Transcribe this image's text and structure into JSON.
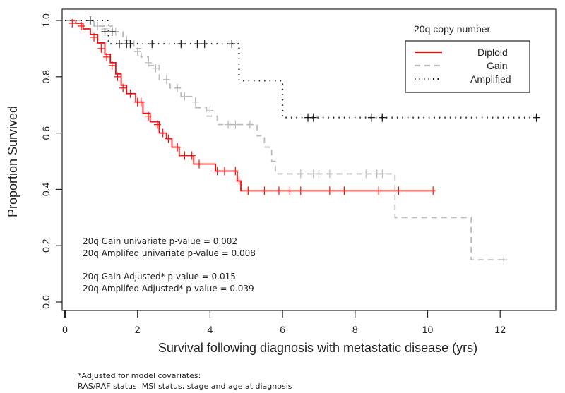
{
  "chart_data": {
    "type": "line",
    "subtype": "kaplan-meier",
    "title": "",
    "xlabel": "Survival following diagnosis with metastatic disease (yrs)",
    "ylabel": "Proportion Survived",
    "xlim": [
      0,
      13.3
    ],
    "ylim": [
      -0.03,
      1.03
    ],
    "xticks": [
      "0",
      "2",
      "4",
      "6",
      "8",
      "10",
      "12"
    ],
    "yticks": [
      "0.0",
      "0.2",
      "0.4",
      "0.6",
      "0.8",
      "1.0"
    ],
    "legend": {
      "title": "20q copy number",
      "placement": "top-right"
    },
    "series": [
      {
        "name": "Diploid",
        "color": "#ee1111",
        "dash": "solid",
        "steps": [
          [
            0,
            1.0
          ],
          [
            0.3,
            0.99
          ],
          [
            0.5,
            0.97
          ],
          [
            0.7,
            0.95
          ],
          [
            0.9,
            0.92
          ],
          [
            1.1,
            0.88
          ],
          [
            1.25,
            0.85
          ],
          [
            1.4,
            0.81
          ],
          [
            1.55,
            0.77
          ],
          [
            1.7,
            0.74
          ],
          [
            1.95,
            0.71
          ],
          [
            2.15,
            0.67
          ],
          [
            2.35,
            0.64
          ],
          [
            2.6,
            0.6
          ],
          [
            2.8,
            0.58
          ],
          [
            2.95,
            0.55
          ],
          [
            3.15,
            0.52
          ],
          [
            3.55,
            0.49
          ],
          [
            4.15,
            0.465
          ],
          [
            4.75,
            0.43
          ],
          [
            4.85,
            0.395
          ]
        ],
        "end": 10.2,
        "censored": [
          [
            0.2,
            0.99
          ],
          [
            0.45,
            0.98
          ],
          [
            0.8,
            0.94
          ],
          [
            1.0,
            0.9
          ],
          [
            1.15,
            0.87
          ],
          [
            1.3,
            0.84
          ],
          [
            1.45,
            0.8
          ],
          [
            1.6,
            0.76
          ],
          [
            1.8,
            0.74
          ],
          [
            2.0,
            0.71
          ],
          [
            2.1,
            0.71
          ],
          [
            2.3,
            0.66
          ],
          [
            2.55,
            0.63
          ],
          [
            2.7,
            0.6
          ],
          [
            2.85,
            0.58
          ],
          [
            3.1,
            0.55
          ],
          [
            3.3,
            0.52
          ],
          [
            3.5,
            0.52
          ],
          [
            3.7,
            0.49
          ],
          [
            4.2,
            0.465
          ],
          [
            4.4,
            0.465
          ],
          [
            4.7,
            0.465
          ],
          [
            4.8,
            0.43
          ],
          [
            5.05,
            0.395
          ],
          [
            5.5,
            0.395
          ],
          [
            5.9,
            0.395
          ],
          [
            6.2,
            0.395
          ],
          [
            6.5,
            0.395
          ],
          [
            7.3,
            0.395
          ],
          [
            7.7,
            0.395
          ],
          [
            8.65,
            0.395
          ],
          [
            9.2,
            0.395
          ],
          [
            10.15,
            0.395
          ]
        ]
      },
      {
        "name": "Gain",
        "color": "#bbbbbb",
        "dash": "dashed",
        "steps": [
          [
            0,
            1.0
          ],
          [
            0.8,
            0.98
          ],
          [
            1.3,
            0.96
          ],
          [
            1.6,
            0.93
          ],
          [
            1.9,
            0.9
          ],
          [
            2.1,
            0.87
          ],
          [
            2.3,
            0.84
          ],
          [
            2.6,
            0.79
          ],
          [
            2.9,
            0.76
          ],
          [
            3.2,
            0.73
          ],
          [
            3.6,
            0.69
          ],
          [
            3.9,
            0.66
          ],
          [
            4.2,
            0.63
          ],
          [
            5.3,
            0.59
          ],
          [
            5.5,
            0.55
          ],
          [
            5.7,
            0.5
          ],
          [
            5.8,
            0.455
          ],
          [
            9.1,
            0.3
          ],
          [
            11.2,
            0.15
          ]
        ],
        "end": 12.1,
        "censored": [
          [
            0.9,
            0.98
          ],
          [
            1.1,
            0.97
          ],
          [
            1.4,
            0.96
          ],
          [
            1.7,
            0.93
          ],
          [
            2.0,
            0.89
          ],
          [
            2.3,
            0.85
          ],
          [
            2.5,
            0.83
          ],
          [
            2.8,
            0.79
          ],
          [
            3.1,
            0.76
          ],
          [
            3.3,
            0.73
          ],
          [
            3.6,
            0.71
          ],
          [
            4.0,
            0.68
          ],
          [
            4.5,
            0.63
          ],
          [
            4.7,
            0.63
          ],
          [
            5.1,
            0.63
          ],
          [
            6.5,
            0.455
          ],
          [
            6.85,
            0.455
          ],
          [
            7.0,
            0.455
          ],
          [
            7.3,
            0.455
          ],
          [
            8.3,
            0.455
          ],
          [
            8.6,
            0.455
          ],
          [
            8.75,
            0.455
          ],
          [
            12.1,
            0.15
          ]
        ]
      },
      {
        "name": "Amplified",
        "color": "#111111",
        "dash": "dotted",
        "steps": [
          [
            0,
            1.0
          ],
          [
            1.2,
            0.917
          ],
          [
            4.8,
            0.786
          ],
          [
            6.0,
            0.655
          ]
        ],
        "end": 13.0,
        "censored": [
          [
            0.7,
            1.0
          ],
          [
            1.1,
            0.96
          ],
          [
            1.3,
            0.96
          ],
          [
            1.5,
            0.917
          ],
          [
            1.7,
            0.917
          ],
          [
            1.8,
            0.917
          ],
          [
            2.4,
            0.917
          ],
          [
            3.2,
            0.917
          ],
          [
            3.65,
            0.917
          ],
          [
            3.85,
            0.917
          ],
          [
            4.6,
            0.917
          ],
          [
            6.7,
            0.655
          ],
          [
            6.85,
            0.655
          ],
          [
            8.45,
            0.655
          ],
          [
            8.75,
            0.655
          ],
          [
            13.0,
            0.655
          ]
        ]
      }
    ],
    "annotations": [
      "20q Gain univariate p-value = 0.002",
      "20q Amplifed univariate p-value = 0.008",
      "20q Gain Adjusted* p-value = 0.015",
      "20q Amplifed Adjusted* p-value = 0.039"
    ],
    "footnote": [
      "*Adjusted for model covariates:",
      "RAS/RAF status, MSI status, stage and age at diagnosis"
    ]
  }
}
